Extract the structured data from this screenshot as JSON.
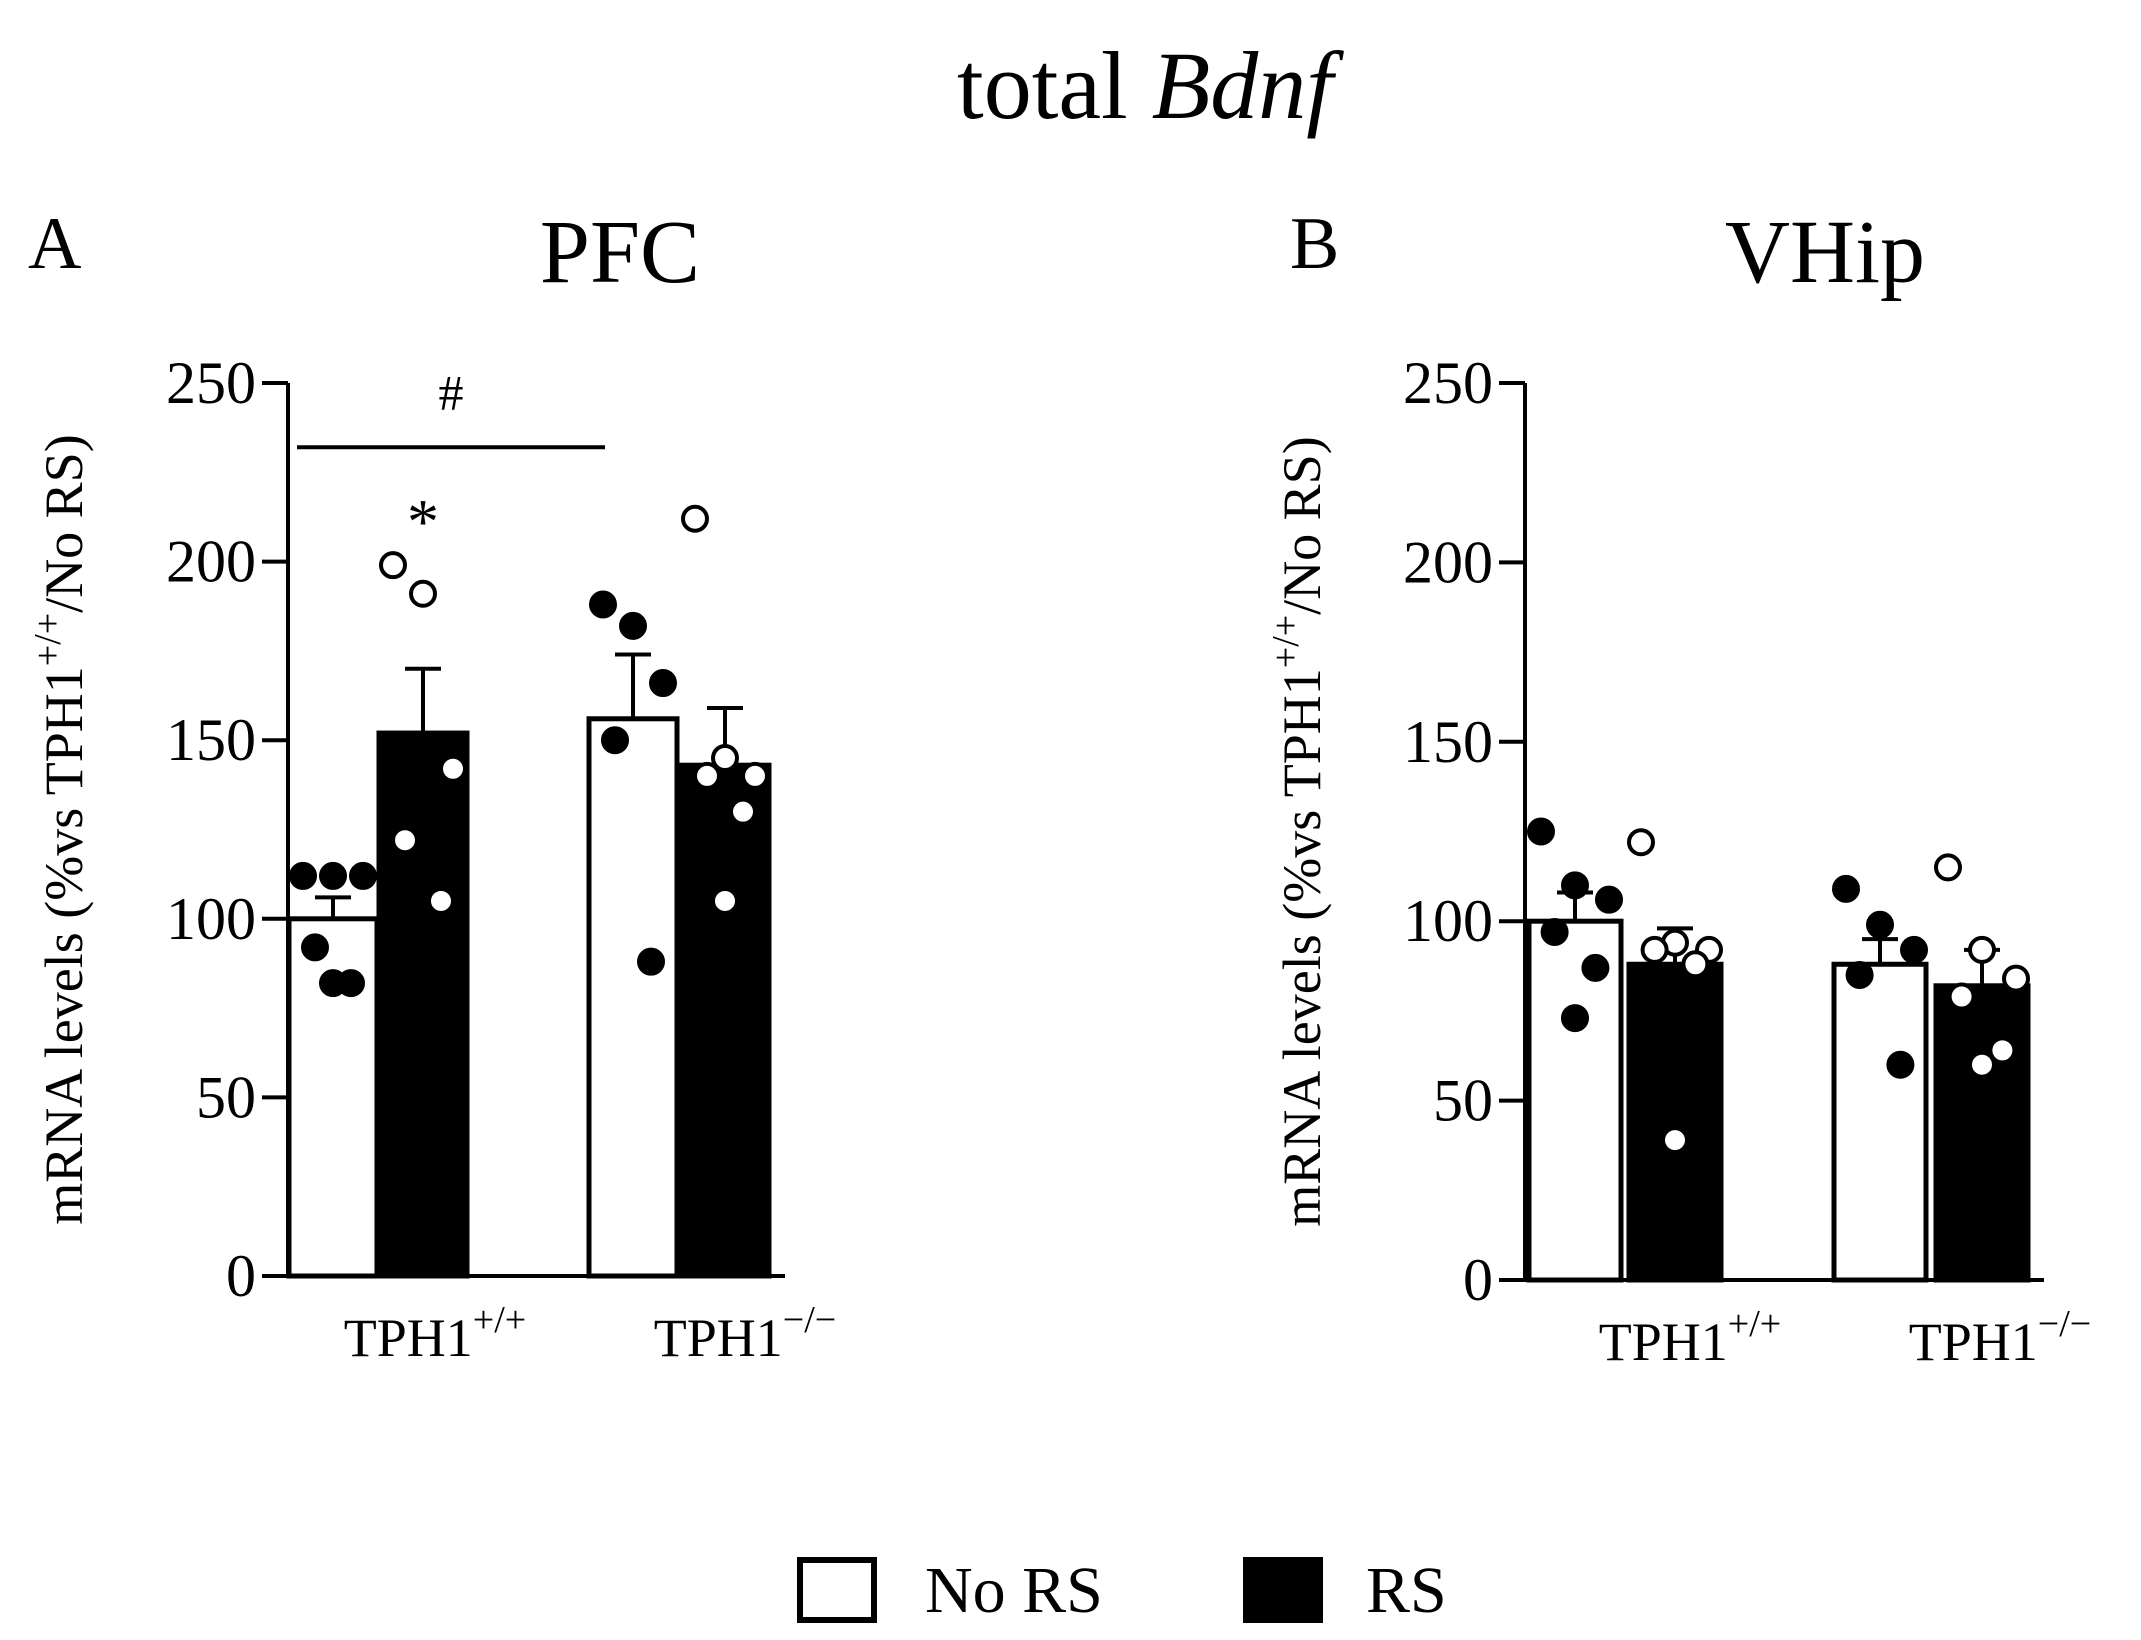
{
  "figure": {
    "title_prefix": "total ",
    "title_gene": "Bdnf"
  },
  "legend": {
    "items": [
      {
        "label": "No RS",
        "fill": "#ffffff"
      },
      {
        "label": "RS",
        "fill": "#000000"
      }
    ]
  },
  "chart_data": [
    {
      "type": "bar",
      "panel_letter": "A",
      "title": "PFC",
      "ylabel_main": "mRNA levels (%vs TPH1",
      "ylabel_sup": "+/+",
      "ylabel_end": "/No RS)",
      "ylim": [
        0,
        250
      ],
      "yticks": [
        0,
        50,
        100,
        150,
        200,
        250
      ],
      "categories": [
        {
          "base": "TPH1",
          "sup": "+/+"
        },
        {
          "base": "TPH1",
          "sup": "−/−"
        }
      ],
      "series": [
        {
          "name": "No RS",
          "values": [
            100,
            156
          ],
          "sem": [
            6,
            18
          ],
          "points": [
            [
              112,
              112,
              112,
              92,
              82,
              82
            ],
            [
              188,
              182,
              166,
              150,
              88
            ]
          ]
        },
        {
          "name": "RS",
          "values": [
            152,
            143
          ],
          "sem": [
            18,
            16
          ],
          "points": [
            [
              199,
              191,
              142,
              122,
              105
            ],
            [
              212,
              145,
              140,
              140,
              130,
              105
            ]
          ]
        }
      ],
      "annotations": {
        "star": "*",
        "hash": "#"
      }
    },
    {
      "type": "bar",
      "panel_letter": "B",
      "title": "VHip",
      "ylabel_main": "mRNA levels (%vs TPH1",
      "ylabel_sup": "+/+",
      "ylabel_end": "/No RS)",
      "ylim": [
        0,
        250
      ],
      "yticks": [
        0,
        50,
        100,
        150,
        200,
        250
      ],
      "categories": [
        {
          "base": "TPH1",
          "sup": "+/+"
        },
        {
          "base": "TPH1",
          "sup": "−/−"
        }
      ],
      "series": [
        {
          "name": "No RS",
          "values": [
            100,
            88
          ],
          "sem": [
            8,
            7
          ],
          "points": [
            [
              125,
              110,
              106,
              97,
              87,
              73
            ],
            [
              109,
              99,
              92,
              85,
              60
            ]
          ]
        },
        {
          "name": "RS",
          "values": [
            88,
            82
          ],
          "sem": [
            10,
            10
          ],
          "points": [
            [
              122,
              94,
              92,
              92,
              88,
              39
            ],
            [
              115,
              92,
              84,
              79,
              64,
              60
            ]
          ]
        }
      ],
      "annotations": {}
    }
  ]
}
